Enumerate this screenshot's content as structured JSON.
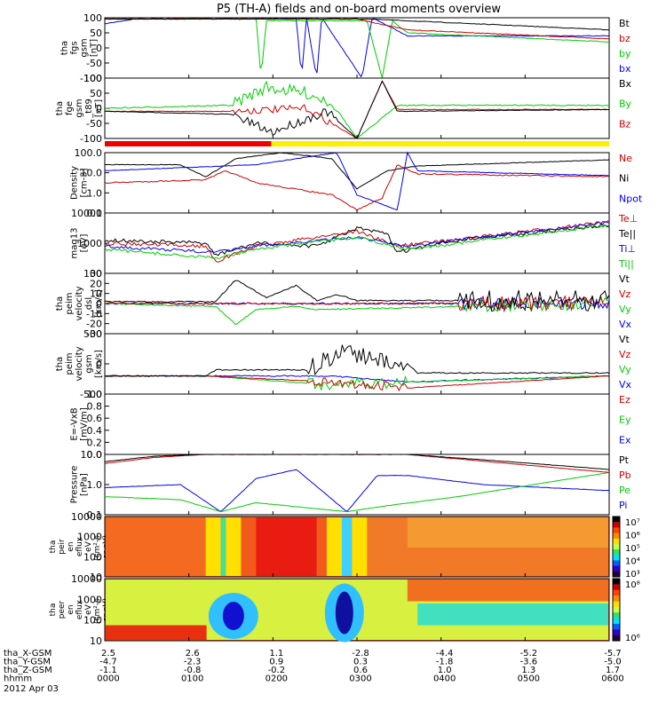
{
  "chart_data": {
    "type": "line",
    "title": "P5 (TH-A) fields and on-board moments overview",
    "date": "2012 Apr 03",
    "x_ticks": [
      "0000",
      "0100",
      "0200",
      "0300",
      "0400",
      "0500",
      "0600"
    ],
    "ephemeris": {
      "rows": [
        {
          "label": "tha_X-GSM",
          "values": [
            "2.5",
            "2.6",
            "1.1",
            "-2.8",
            "-4.4",
            "-5.2",
            "-5.7"
          ]
        },
        {
          "label": "tha_Y-GSM",
          "values": [
            "-4.7",
            "-2.3",
            "0.9",
            "0.3",
            "-1.8",
            "-3.6",
            "-5.0"
          ]
        },
        {
          "label": "tha_Z-GSM",
          "values": [
            "-1.1",
            "-0.8",
            "-0.2",
            "0.6",
            "1.0",
            "1.3",
            "1.7"
          ]
        },
        {
          "label": "hhmm",
          "values": []
        }
      ]
    },
    "panels": [
      {
        "ylabel": [
          "tha",
          "fgs",
          "gsm",
          "[nT]"
        ],
        "yticks": [
          "100",
          "50",
          "0",
          "-50",
          "-100"
        ],
        "legend": [
          {
            "name": "Bt",
            "color": "#000000"
          },
          {
            "name": "bz",
            "color": "#cc0000"
          },
          {
            "name": "by",
            "color": "#00cc00"
          },
          {
            "name": "bx",
            "color": "#0000ee"
          }
        ]
      },
      {
        "ylabel": [
          "tha",
          "fge",
          "gsm",
          "_t89",
          "[nT]"
        ],
        "yticks": [
          "100",
          "50",
          "0",
          "-50",
          "-100"
        ],
        "legend": [
          {
            "name": "Bx",
            "color": "#000000"
          },
          {
            "name": "By",
            "color": "#00cc00"
          },
          {
            "name": "Bz",
            "color": "#cc0000"
          }
        ]
      },
      {
        "ylabel": [
          "Density",
          "[cm-3]"
        ],
        "yticks": [
          "100.0",
          "10.0",
          "1.0",
          "0.1"
        ],
        "legend": [
          {
            "name": "Ne",
            "color": "#cc0000"
          },
          {
            "name": "Ni",
            "color": "#000000"
          },
          {
            "name": "Npot",
            "color": "#0000ee"
          }
        ]
      },
      {
        "ylabel": [
          "mag13",
          "[eV]"
        ],
        "yticks": [
          "10000",
          "1000",
          "100"
        ],
        "legend": [
          {
            "name": "Te⊥",
            "color": "#cc0000"
          },
          {
            "name": "Te||",
            "color": "#000000"
          },
          {
            "name": "Ti⊥",
            "color": "#0000ee"
          },
          {
            "name": "Ti||",
            "color": "#00cc00"
          }
        ]
      },
      {
        "ylabel": [
          "tha",
          "peim",
          "velocity",
          "dsl",
          "[km/s]"
        ],
        "yticks": [
          "30",
          "20",
          "10",
          "0",
          "-10",
          "-20",
          "-30"
        ],
        "legend": [
          {
            "name": "Vt",
            "color": "#000000"
          },
          {
            "name": "Vz",
            "color": "#cc0000"
          },
          {
            "name": "Vy",
            "color": "#00cc00"
          },
          {
            "name": "Vx",
            "color": "#0000ee"
          }
        ]
      },
      {
        "ylabel": [
          "tha",
          "peim",
          "velocity",
          "gsm",
          "[km/s]"
        ],
        "yticks": [
          "500",
          "0",
          "-500"
        ],
        "legend": [
          {
            "name": "Vt",
            "color": "#000000"
          },
          {
            "name": "Vz",
            "color": "#cc0000"
          },
          {
            "name": "Vy",
            "color": "#00cc00"
          },
          {
            "name": "Vx",
            "color": "#0000ee"
          }
        ]
      },
      {
        "ylabel": [
          "E=-VxB",
          "[mV/m]"
        ],
        "yticks": [
          "1.0",
          "0.8",
          "0.6",
          "0.4",
          "0.2",
          "0.0"
        ],
        "legend": [
          {
            "name": "Ez",
            "color": "#cc0000"
          },
          {
            "name": "Ey",
            "color": "#00cc00"
          },
          {
            "name": "Ex",
            "color": "#0000ee"
          }
        ]
      },
      {
        "ylabel": [
          "Pressure",
          "[nPa]"
        ],
        "yticks": [
          "10.0",
          "1.0",
          "0.1"
        ],
        "legend": [
          {
            "name": "Pt",
            "color": "#000000"
          },
          {
            "name": "Pb",
            "color": "#cc0000"
          },
          {
            "name": "Pe",
            "color": "#00cc00"
          },
          {
            "name": "Pi",
            "color": "#0000ee"
          }
        ]
      },
      {
        "ylabel": [
          "tha",
          "peir",
          "en",
          "eflux",
          "eV",
          "(cm^2-s-",
          "sr-eV)"
        ],
        "yticks": [
          "10000",
          "1000",
          "100",
          "10"
        ],
        "colorbar": [
          "10^7",
          "10^6",
          "10^5",
          "10^4",
          "10^3"
        ]
      },
      {
        "ylabel": [
          "tha",
          "peer",
          "en",
          "eflux",
          "eV",
          "(cm^2-s-",
          "sr-eV)"
        ],
        "yticks": [
          "10000",
          "1000",
          "100",
          "10"
        ],
        "colorbar": [
          "10^8",
          "10^6"
        ]
      }
    ]
  }
}
